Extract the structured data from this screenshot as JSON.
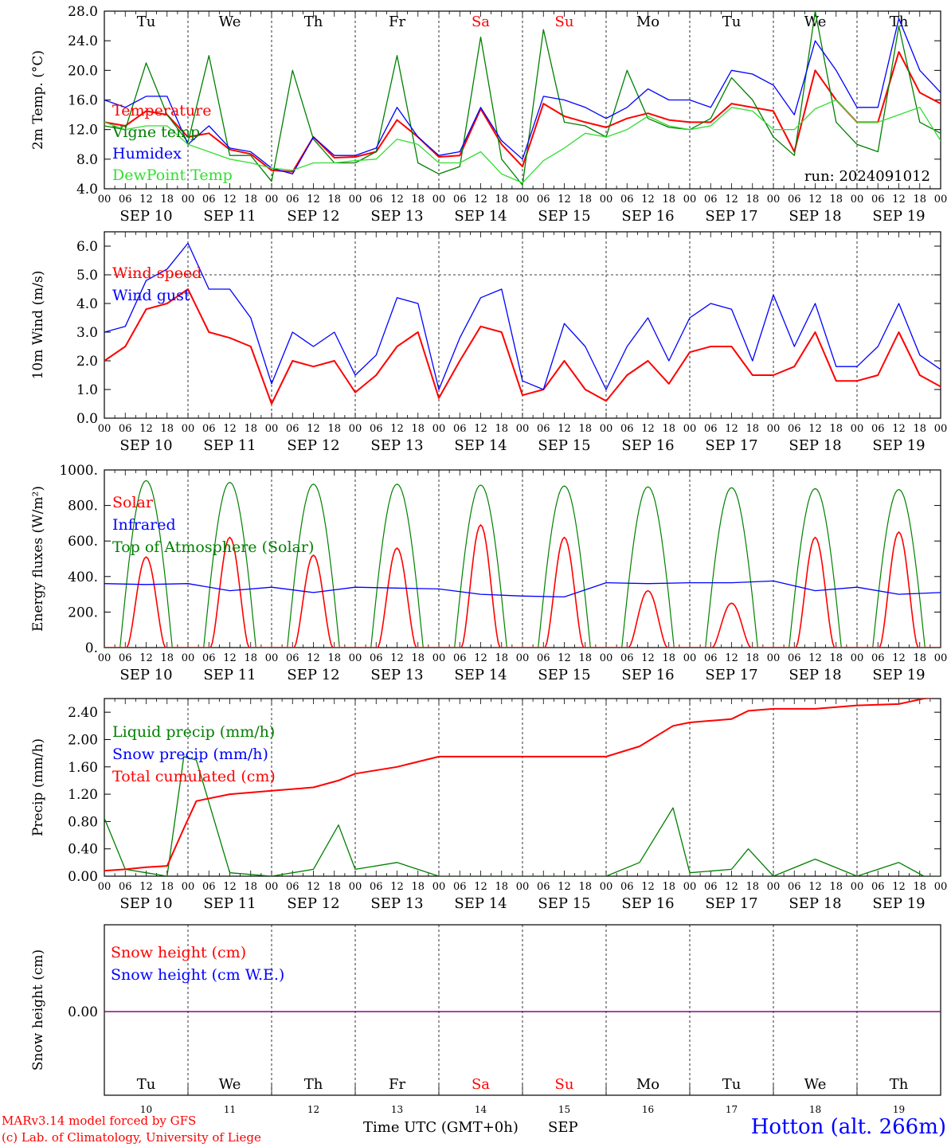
{
  "days": [
    "Tu",
    "We",
    "Th",
    "Fr",
    "Sa",
    "Su",
    "Mo",
    "Tu",
    "We",
    "Th"
  ],
  "weekend_days": [
    4,
    5
  ],
  "dates": [
    "SEP 10",
    "SEP 11",
    "SEP 12",
    "SEP 13",
    "SEP 14",
    "SEP 15",
    "SEP 16",
    "SEP 17",
    "SEP 18",
    "SEP 19"
  ],
  "bottom_dates": [
    "10",
    "11",
    "12",
    "13",
    "14",
    "15",
    "16",
    "17",
    "18",
    "19"
  ],
  "hour_ticks": [
    "00",
    "06",
    "12",
    "18"
  ],
  "hour_end": "00",
  "run_label": "run: 2024091012",
  "xlabel": "Time UTC (GMT+0h)",
  "month": "SEP",
  "station": "Hotton (alt. 266m)",
  "footer": [
    "MARv3.14 model forced by GFS",
    "(c) Lab. of Climatology, University of Liege"
  ],
  "colors": {
    "red": "#ff0000",
    "green": "#008000",
    "blue": "#0000ff",
    "lightgreen": "#33dd33",
    "purple": "#800080"
  },
  "chart_data": [
    {
      "type": "line",
      "ylabel": "2m Temp. (°C)",
      "ylim": [
        4,
        28
      ],
      "yticks": [
        4,
        8,
        12,
        16,
        20,
        24,
        28
      ],
      "ytick_labels": [
        "4.0",
        "8.0",
        "12.0",
        "16.0",
        "20.0",
        "24.0",
        "28.0"
      ],
      "legend": [
        "Temperature",
        "Vigne temp",
        "Humidex",
        "DewPoint Temp"
      ],
      "x_days": [
        0,
        0.25,
        0.5,
        0.75,
        1,
        1.25,
        1.5,
        1.75,
        2,
        2.25,
        2.5,
        2.75,
        3,
        3.25,
        3.5,
        3.75,
        4,
        4.25,
        4.5,
        4.75,
        5,
        5.25,
        5.5,
        5.75,
        6,
        6.25,
        6.5,
        6.75,
        7,
        7.25,
        7.5,
        7.75,
        8,
        8.25,
        8.5,
        8.75,
        9,
        9.25,
        9.5,
        9.75,
        10
      ],
      "series": [
        {
          "name": "Temperature",
          "color": "red",
          "values": [
            13,
            12.5,
            14.5,
            14,
            11,
            11.5,
            9.3,
            8.7,
            6.5,
            6.3,
            11,
            8.2,
            8.3,
            9,
            13.3,
            11,
            8.3,
            8.5,
            14.8,
            10,
            7,
            15.5,
            13.8,
            13,
            12.3,
            13.5,
            14.2,
            13.3,
            13,
            13,
            15.5,
            15,
            14.5,
            9,
            20,
            16,
            13,
            13,
            22.5,
            17,
            15.5
          ]
        },
        {
          "name": "Vigne temp",
          "color": "green",
          "values": [
            12.5,
            12,
            21,
            14,
            10.3,
            22,
            8.5,
            8.5,
            5,
            20,
            10.7,
            7.5,
            7.5,
            9,
            22,
            7.5,
            6,
            7,
            24.5,
            8,
            4.5,
            25.5,
            13,
            12.5,
            11,
            20,
            13.5,
            12.3,
            12,
            13.5,
            19,
            16,
            11,
            8.5,
            28,
            13,
            10,
            9,
            26,
            13,
            11.5
          ]
        },
        {
          "name": "Humidex",
          "color": "blue",
          "values": [
            16,
            15,
            16.5,
            16.5,
            10,
            12.5,
            9.5,
            9,
            6.8,
            6,
            11,
            8.5,
            8.5,
            9.5,
            15,
            11,
            8.5,
            9,
            15,
            10.5,
            8,
            16.5,
            16,
            15,
            13.5,
            15,
            17.5,
            16,
            16,
            15,
            20,
            19.5,
            18,
            14,
            24,
            20,
            15,
            15,
            27,
            20,
            17
          ]
        },
        {
          "name": "DewPoint Temp",
          "color": "lightgreen",
          "values": [
            13,
            12,
            12.5,
            12.5,
            10,
            9,
            8,
            7.5,
            6.8,
            6.5,
            7.5,
            7.5,
            7.8,
            8,
            10.7,
            10,
            7.5,
            7.5,
            9,
            6,
            4.8,
            7.8,
            9.5,
            11.5,
            11,
            12,
            13.8,
            12.5,
            12,
            12.5,
            15,
            14.5,
            12,
            12,
            14.8,
            16,
            13,
            13,
            14,
            15,
            10.5
          ]
        }
      ]
    },
    {
      "type": "line",
      "ylabel": "10m Wind (m/s)",
      "ylim": [
        0,
        6.5
      ],
      "yticks": [
        0,
        1,
        2,
        3,
        4,
        5,
        6
      ],
      "ytick_labels": [
        "0.0",
        "1.0",
        "2.0",
        "3.0",
        "4.0",
        "5.0",
        "6.0"
      ],
      "hline": 5,
      "legend": [
        "Wind speed",
        "Wind gust"
      ],
      "x_days": [
        0,
        0.25,
        0.5,
        0.75,
        1,
        1.25,
        1.5,
        1.75,
        2,
        2.25,
        2.5,
        2.75,
        3,
        3.25,
        3.5,
        3.75,
        4,
        4.25,
        4.5,
        4.75,
        5,
        5.25,
        5.5,
        5.75,
        6,
        6.25,
        6.5,
        6.75,
        7,
        7.25,
        7.5,
        7.75,
        8,
        8.25,
        8.5,
        8.75,
        9,
        9.25,
        9.5,
        9.75,
        10
      ],
      "series": [
        {
          "name": "Wind speed",
          "color": "red",
          "values": [
            2,
            2.5,
            3.8,
            4,
            4.5,
            3,
            2.8,
            2.5,
            0.5,
            2,
            1.8,
            2,
            0.9,
            1.5,
            2.5,
            3,
            0.7,
            2,
            3.2,
            3,
            0.8,
            1,
            2,
            1,
            0.6,
            1.5,
            2,
            1.2,
            2.3,
            2.5,
            2.5,
            1.5,
            1.5,
            1.8,
            3,
            1.3,
            1.3,
            1.5,
            3,
            1.5,
            1.1
          ]
        },
        {
          "name": "Wind gust",
          "color": "blue",
          "values": [
            3,
            3.2,
            4.8,
            5.2,
            6.1,
            4.5,
            4.5,
            3.5,
            1.2,
            3,
            2.5,
            3,
            1.5,
            2.2,
            4.2,
            4,
            1,
            2.8,
            4.2,
            4.5,
            1.3,
            1,
            3.3,
            2.5,
            1,
            2.5,
            3.5,
            2,
            3.5,
            4,
            3.8,
            2,
            4.3,
            2.5,
            4,
            1.8,
            1.8,
            2.5,
            4,
            2.2,
            1.7
          ]
        }
      ]
    },
    {
      "type": "line",
      "ylabel": "Energy fluxes (W/m²)",
      "ylim": [
        0,
        1000
      ],
      "yticks": [
        0,
        200,
        400,
        600,
        800,
        1000
      ],
      "ytick_labels": [
        "0.",
        "200.",
        "400.",
        "600.",
        "800.",
        "1000."
      ],
      "legend": [
        "Solar",
        "Infrared",
        "Top of Atmosphere (Solar)"
      ],
      "toa_peaks": [
        940,
        930,
        920,
        920,
        915,
        910,
        905,
        900,
        895,
        890
      ],
      "solar_peaks": [
        510,
        620,
        520,
        560,
        690,
        620,
        320,
        250,
        620,
        650
      ],
      "x_days": [
        0,
        0.5,
        1,
        1.5,
        2,
        2.5,
        3,
        3.5,
        4,
        4.5,
        5,
        5.5,
        6,
        6.5,
        7,
        7.5,
        8,
        8.5,
        9,
        9.5,
        10
      ],
      "series": [
        {
          "name": "Infrared",
          "color": "blue",
          "values": [
            360,
            355,
            360,
            320,
            340,
            310,
            340,
            335,
            330,
            300,
            290,
            285,
            365,
            360,
            365,
            365,
            375,
            320,
            340,
            300,
            310
          ]
        }
      ]
    },
    {
      "type": "line",
      "ylabel": "Precip (mm/h)",
      "ylim": [
        0,
        2.6
      ],
      "yticks": [
        0,
        0.4,
        0.8,
        1.2,
        1.6,
        2.0,
        2.4
      ],
      "ytick_labels": [
        "0.00",
        "0.40",
        "0.80",
        "1.20",
        "1.60",
        "2.00",
        "2.40"
      ],
      "legend": [
        "Liquid precip (mm/h)",
        "Snow precip (mm/h)",
        "Total cumulated (cm)"
      ],
      "x_days": [
        0,
        0.25,
        0.5,
        0.75,
        0.95,
        1.1,
        1.5,
        2,
        2.5,
        2.8,
        3,
        3.5,
        4,
        4.5,
        5,
        5.5,
        6,
        6.4,
        6.8,
        7,
        7.5,
        7.7,
        8,
        8.5,
        9,
        9.5,
        9.8,
        10
      ],
      "series": [
        {
          "name": "Liquid precip (mm/h)",
          "color": "green",
          "values": [
            0.85,
            0.1,
            0.05,
            0,
            1.75,
            1.7,
            0.05,
            0,
            0.1,
            0.75,
            0.1,
            0.2,
            0,
            0,
            0,
            0,
            0,
            0.2,
            1.0,
            0.05,
            0.1,
            0.4,
            0,
            0.25,
            0,
            0.2,
            0,
            0
          ]
        },
        {
          "name": "Total cumulated (cm)",
          "color": "red",
          "values": [
            0.08,
            0.1,
            0.13,
            0.15,
            0.7,
            1.1,
            1.2,
            1.25,
            1.3,
            1.4,
            1.5,
            1.6,
            1.75,
            1.75,
            1.75,
            1.75,
            1.75,
            1.9,
            2.2,
            2.25,
            2.3,
            2.42,
            2.45,
            2.45,
            2.5,
            2.52,
            2.6,
            2.62
          ]
        }
      ]
    },
    {
      "type": "line",
      "ylabel": "Snow height (cm)",
      "ytick_labels": [
        "0.00"
      ],
      "legend": [
        "Snow height (cm)",
        "Snow height (cm W.E.)"
      ],
      "x_days": [
        0,
        10
      ],
      "series": [
        {
          "name": "Snow height (cm)",
          "color": "red",
          "values": [
            0,
            0
          ]
        },
        {
          "name": "Snow height (cm W.E.)",
          "color": "blue",
          "values": [
            0,
            0
          ]
        }
      ]
    }
  ]
}
